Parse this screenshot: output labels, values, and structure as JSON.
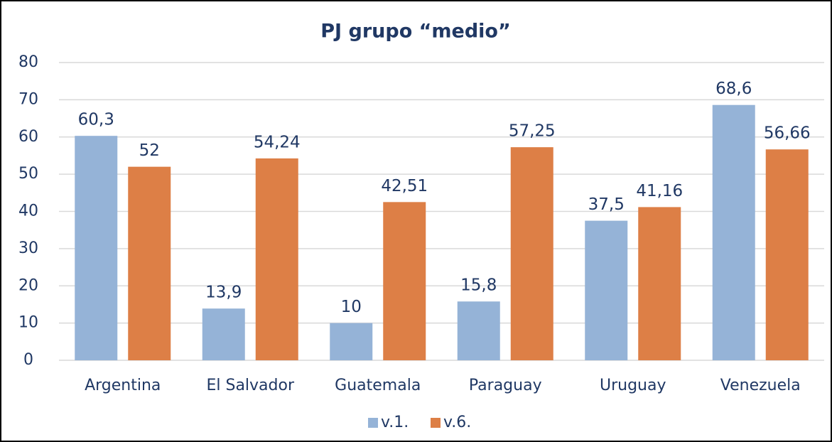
{
  "chart_data": {
    "type": "bar",
    "title": "PJ grupo “medio”",
    "categories": [
      "Argentina",
      "El Salvador",
      "Guatemala",
      "Paraguay",
      "Uruguay",
      "Venezuela"
    ],
    "series": [
      {
        "name": "v.1.",
        "color": "#95b3d7",
        "values": [
          60.3,
          13.9,
          10,
          15.8,
          37.5,
          68.6
        ],
        "value_labels": [
          "60,3",
          "13,9",
          "10",
          "15,8",
          "37,5",
          "68,6"
        ]
      },
      {
        "name": "v.6.",
        "color": "#dd7f46",
        "values": [
          52,
          54.24,
          42.51,
          57.25,
          41.16,
          56.66
        ],
        "value_labels": [
          "52",
          "54,24",
          "42,51",
          "57,25",
          "41,16",
          "56,66"
        ]
      }
    ],
    "ylim": [
      0,
      80
    ],
    "yticks": [
      0,
      10,
      20,
      30,
      40,
      50,
      60,
      70,
      80
    ],
    "grid": true,
    "legend": "bottom"
  }
}
